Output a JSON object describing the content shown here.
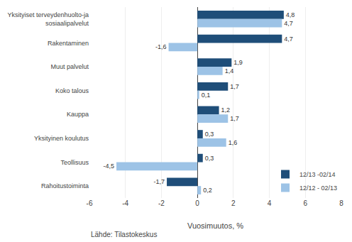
{
  "chart_data": {
    "type": "bar",
    "orientation": "horizontal",
    "categories": [
      "Yksityiset terveydenhuolto-ja sosiaalipalvelut",
      "Rakentaminen",
      "Muut palvelut",
      "Koko talous",
      "Kauppa",
      "Yksityinen koulutus",
      "Teollisuus",
      "Rahoitustoiminta"
    ],
    "series": [
      {
        "name": "12/13 -02/14",
        "color": "#1F4E79",
        "values": [
          4.8,
          4.7,
          1.9,
          1.7,
          1.2,
          0.3,
          0.3,
          -1.7
        ],
        "value_labels": [
          "4,8",
          "4,7",
          "1,9",
          "1,7",
          "1,2",
          "0,3",
          "0,3",
          "-1,7"
        ]
      },
      {
        "name": "12/12 - 02/13",
        "color": "#9DC3E6",
        "values": [
          4.7,
          -1.6,
          1.4,
          0.1,
          1.7,
          1.6,
          -4.5,
          0.2
        ],
        "value_labels": [
          "4,7",
          "-1,6",
          "1,4",
          "0,1",
          "1,7",
          "1,6",
          "-4,5",
          "0,2"
        ]
      }
    ],
    "xlabel": "Vuosimuutos, %",
    "xlim": [
      -6,
      8
    ],
    "xticks": [
      -6,
      -4,
      -2,
      0,
      2,
      4,
      6,
      8
    ],
    "grid": true,
    "legend": "lower right",
    "data_labels": true,
    "annotations": [
      "Lähde: Tilastokeskus"
    ]
  }
}
